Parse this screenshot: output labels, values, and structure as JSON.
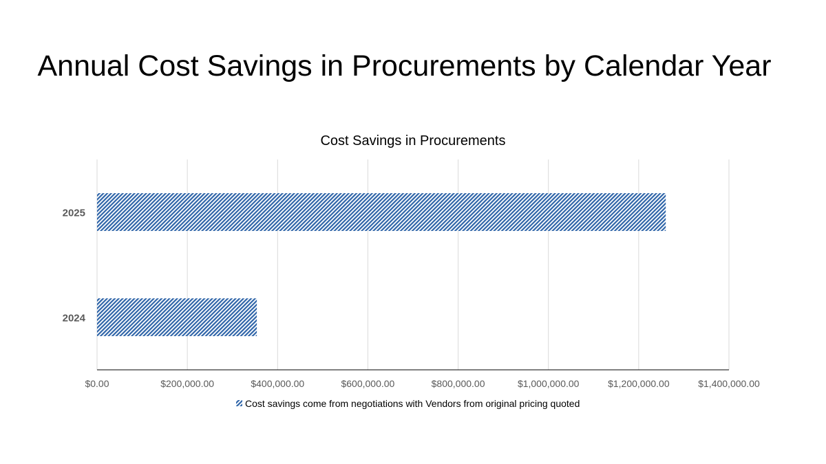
{
  "slide_title": "Annual Cost Savings in Procurements by Calendar Year",
  "chart_data": {
    "type": "bar",
    "orientation": "horizontal",
    "title": "Cost Savings in Procurements",
    "categories": [
      "2024",
      "2025"
    ],
    "series": [
      {
        "name": "Cost savings come from negotiations with Vendors from original pricing quoted",
        "values": [
          354000,
          1260000
        ],
        "color": "#2E64A8",
        "pattern": "diagonal-hatch"
      }
    ],
    "xlim": [
      0,
      1400000
    ],
    "xticks": [
      0,
      200000,
      400000,
      600000,
      800000,
      1000000,
      1200000,
      1400000
    ],
    "xtick_labels": [
      "$0.00",
      "$200,000.00",
      "$400,000.00",
      "$600,000.00",
      "$800,000.00",
      "$1,000,000.00",
      "$1,200,000.00",
      "$1,400,000.00"
    ],
    "xlabel": "",
    "ylabel": "",
    "grid": true,
    "legend_position": "bottom"
  }
}
